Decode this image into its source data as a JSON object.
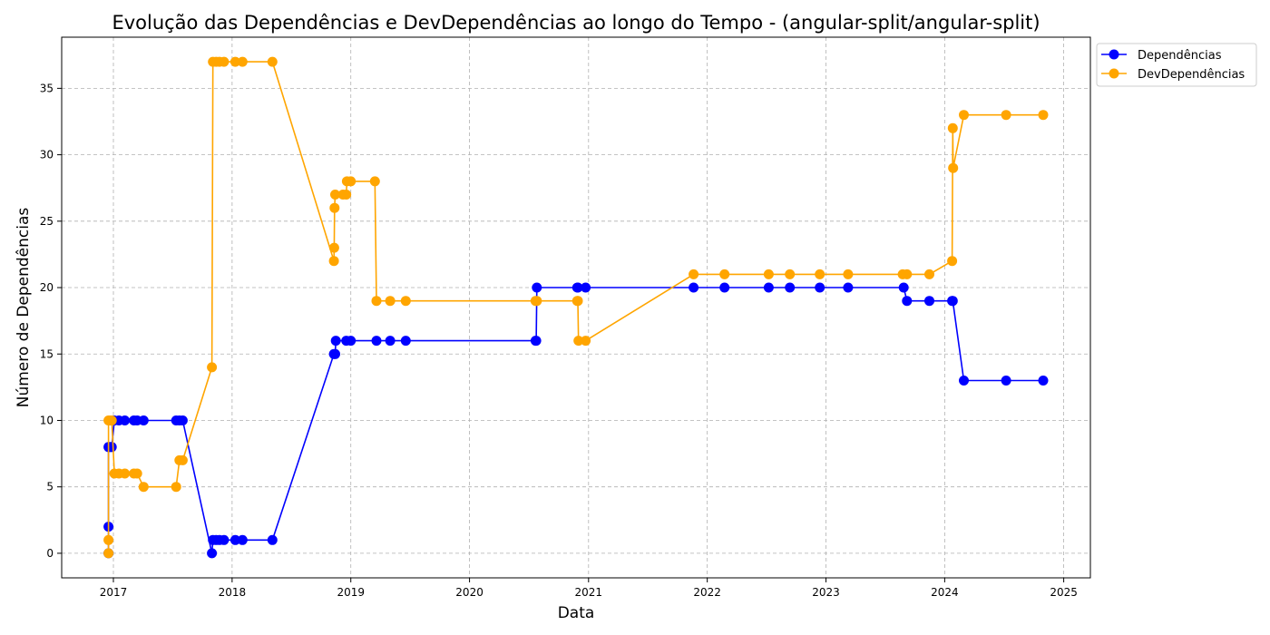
{
  "chart_data": {
    "type": "line",
    "title": "Evolução das Dependências e DevDependências ao longo do Tempo - (angular-split/angular-split)",
    "xlabel": "Data",
    "ylabel": "Número de Dependências",
    "x_ticks": [
      "2017",
      "2018",
      "2019",
      "2020",
      "2021",
      "2022",
      "2023",
      "2024",
      "2025"
    ],
    "y_ticks": [
      "0",
      "5",
      "10",
      "15",
      "20",
      "25",
      "30",
      "35"
    ],
    "xlim": [
      "2016-07-26",
      "2025-03-24"
    ],
    "ylim": [
      -1.85,
      38.85
    ],
    "grid": true,
    "legend_position": "outside-top-right",
    "series": [
      {
        "name": "Dependências",
        "color": "#0000ff",
        "points": [
          [
            "2016-12-17",
            0
          ],
          [
            "2016-12-17",
            2
          ],
          [
            "2016-12-17",
            8
          ],
          [
            "2016-12-22",
            8
          ],
          [
            "2016-12-27",
            8
          ],
          [
            "2017-01-04",
            10
          ],
          [
            "2017-01-18",
            10
          ],
          [
            "2017-02-05",
            10
          ],
          [
            "2017-03-05",
            10
          ],
          [
            "2017-03-15",
            10
          ],
          [
            "2017-04-04",
            10
          ],
          [
            "2017-07-13",
            10
          ],
          [
            "2017-07-23",
            10
          ],
          [
            "2017-08-02",
            10
          ],
          [
            "2017-10-31",
            0
          ],
          [
            "2017-11-03",
            1
          ],
          [
            "2017-11-13",
            1
          ],
          [
            "2017-11-23",
            1
          ],
          [
            "2017-12-07",
            1
          ],
          [
            "2018-01-11",
            1
          ],
          [
            "2018-02-02",
            1
          ],
          [
            "2018-05-05",
            1
          ],
          [
            "2018-11-10",
            15
          ],
          [
            "2018-11-14",
            15
          ],
          [
            "2018-11-16",
            16
          ],
          [
            "2018-12-18",
            16
          ],
          [
            "2019-01-01",
            16
          ],
          [
            "2019-03-21",
            16
          ],
          [
            "2019-05-02",
            16
          ],
          [
            "2019-06-19",
            16
          ],
          [
            "2020-07-22",
            16
          ],
          [
            "2020-07-24",
            16
          ],
          [
            "2020-07-26",
            20
          ],
          [
            "2020-11-27",
            20
          ],
          [
            "2020-11-29",
            20
          ],
          [
            "2020-12-23",
            20
          ],
          [
            "2021-11-20",
            20
          ],
          [
            "2022-02-23",
            20
          ],
          [
            "2022-07-09",
            20
          ],
          [
            "2022-09-12",
            20
          ],
          [
            "2022-12-13",
            20
          ],
          [
            "2023-03-10",
            20
          ],
          [
            "2023-08-28",
            20
          ],
          [
            "2023-09-07",
            19
          ],
          [
            "2023-11-15",
            19
          ],
          [
            "2024-01-24",
            19
          ],
          [
            "2024-01-26",
            19
          ],
          [
            "2024-02-29",
            13
          ],
          [
            "2024-07-08",
            13
          ],
          [
            "2024-10-30",
            13
          ]
        ]
      },
      {
        "name": "DevDependências",
        "color": "#ffa500",
        "points": [
          [
            "2016-12-17",
            0
          ],
          [
            "2016-12-17",
            1
          ],
          [
            "2016-12-17",
            10
          ],
          [
            "2016-12-22",
            10
          ],
          [
            "2016-12-27",
            10
          ],
          [
            "2017-01-04",
            6
          ],
          [
            "2017-01-18",
            6
          ],
          [
            "2017-02-05",
            6
          ],
          [
            "2017-03-05",
            6
          ],
          [
            "2017-03-15",
            6
          ],
          [
            "2017-04-04",
            5
          ],
          [
            "2017-07-13",
            5
          ],
          [
            "2017-07-23",
            7
          ],
          [
            "2017-08-02",
            7
          ],
          [
            "2017-10-31",
            14
          ],
          [
            "2017-11-03",
            37
          ],
          [
            "2017-11-13",
            37
          ],
          [
            "2017-11-23",
            37
          ],
          [
            "2017-12-07",
            37
          ],
          [
            "2018-01-11",
            37
          ],
          [
            "2018-02-02",
            37
          ],
          [
            "2018-05-05",
            37
          ],
          [
            "2018-11-10",
            22
          ],
          [
            "2018-11-11",
            23
          ],
          [
            "2018-11-12",
            26
          ],
          [
            "2018-11-14",
            27
          ],
          [
            "2018-12-08",
            27
          ],
          [
            "2018-12-18",
            27
          ],
          [
            "2018-12-20",
            28
          ],
          [
            "2019-01-01",
            28
          ],
          [
            "2019-03-16",
            28
          ],
          [
            "2019-03-21",
            19
          ],
          [
            "2019-05-02",
            19
          ],
          [
            "2019-06-19",
            19
          ],
          [
            "2020-07-22",
            19
          ],
          [
            "2020-07-26",
            19
          ],
          [
            "2020-11-27",
            19
          ],
          [
            "2020-11-29",
            19
          ],
          [
            "2020-12-01",
            16
          ],
          [
            "2020-12-23",
            16
          ],
          [
            "2021-11-20",
            21
          ],
          [
            "2022-02-23",
            21
          ],
          [
            "2022-07-09",
            21
          ],
          [
            "2022-09-12",
            21
          ],
          [
            "2022-12-13",
            21
          ],
          [
            "2023-03-10",
            21
          ],
          [
            "2023-08-25",
            21
          ],
          [
            "2023-09-07",
            21
          ],
          [
            "2023-11-15",
            21
          ],
          [
            "2024-01-24",
            22
          ],
          [
            "2024-01-26",
            32
          ],
          [
            "2024-01-27",
            29
          ],
          [
            "2024-02-29",
            33
          ],
          [
            "2024-07-08",
            33
          ],
          [
            "2024-10-30",
            33
          ]
        ]
      }
    ]
  }
}
